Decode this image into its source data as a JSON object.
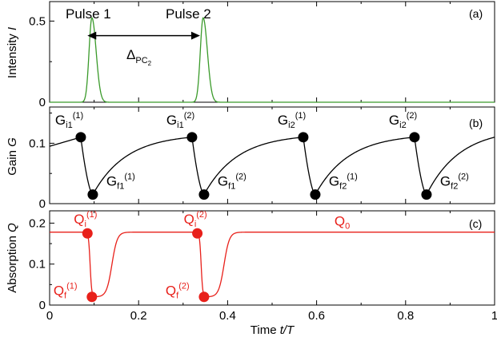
{
  "colors": {
    "intensity": "#3a9a2a",
    "gain": "#000000",
    "absorption": "#e8201a",
    "axes": "#000000"
  },
  "chart_data": [
    {
      "panel": "a",
      "type": "line",
      "tag": "(a)",
      "ylabel": {
        "main": "Intensity ",
        "var": "I"
      },
      "xlim": [
        0,
        1
      ],
      "ylim": [
        0,
        0.62
      ],
      "yticks": [
        0,
        0.5
      ],
      "ytick_labels": [
        "0",
        "0.5"
      ],
      "grid": false,
      "series": [
        {
          "color": "#3a9a2a",
          "pulses": [
            {
              "center": 0.095,
              "width": 0.01,
              "peak": 0.52
            },
            {
              "center": 0.345,
              "width": 0.01,
              "peak": 0.52
            }
          ]
        }
      ],
      "annotations": {
        "pulse1": "Pulse 1",
        "pulse2": "Pulse 2",
        "delta": {
          "symbol": "Δ",
          "sub": "PC",
          "subsub": "2"
        },
        "arrow_from": 0.085,
        "arrow_to": 0.338,
        "arrow_y": 0.41
      }
    },
    {
      "panel": "b",
      "type": "line",
      "tag": "(b)",
      "ylabel": {
        "main": "Gain ",
        "var": "G"
      },
      "xlim": [
        0,
        1
      ],
      "ylim": [
        0,
        0.16
      ],
      "yticks": [
        0,
        0.1
      ],
      "ytick_labels": [
        "0",
        "0.1"
      ],
      "grid": false,
      "points": [
        {
          "x": 0.07,
          "y": 0.11,
          "label": "G",
          "sub": "i1",
          "sup": "(1)"
        },
        {
          "x": 0.097,
          "y": 0.015,
          "label": "G",
          "sub": "f1",
          "sup": "(1)"
        },
        {
          "x": 0.32,
          "y": 0.11,
          "label": "G",
          "sub": "i1",
          "sup": "(2)"
        },
        {
          "x": 0.347,
          "y": 0.015,
          "label": "G",
          "sub": "f1",
          "sup": "(2)"
        },
        {
          "x": 0.57,
          "y": 0.11,
          "label": "G",
          "sub": "i2",
          "sup": "(1)"
        },
        {
          "x": 0.597,
          "y": 0.015,
          "label": "G",
          "sub": "f2",
          "sup": "(1)"
        },
        {
          "x": 0.82,
          "y": 0.11,
          "label": "G",
          "sub": "i2",
          "sup": "(2)"
        },
        {
          "x": 0.847,
          "y": 0.015,
          "label": "G",
          "sub": "f2",
          "sup": "(2)"
        }
      ],
      "start_value": 0.095,
      "recovery_end": 0.11
    },
    {
      "panel": "c",
      "type": "line",
      "tag": "(c)",
      "ylabel": {
        "main": "Absorption ",
        "var": "Q"
      },
      "xlabel": {
        "main": "Time ",
        "var": "t/T"
      },
      "xlim": [
        0,
        1
      ],
      "ylim": [
        0,
        0.23
      ],
      "yticks": [
        0,
        0.1,
        0.2
      ],
      "ytick_labels": [
        "0",
        "0.1",
        "0.2"
      ],
      "xticks": [
        0,
        0.2,
        0.4,
        0.6,
        0.8,
        1
      ],
      "xtick_labels": [
        "0",
        "0.2",
        "0.4",
        "0.6",
        "0.8",
        "1"
      ],
      "grid": false,
      "q0": 0.178,
      "points": [
        {
          "x": 0.085,
          "y": 0.175,
          "label": "Q",
          "sub": "i",
          "sup": "(1)"
        },
        {
          "x": 0.095,
          "y": 0.02,
          "label": "Q",
          "sub": "f",
          "sup": "(1)"
        },
        {
          "x": 0.332,
          "y": 0.175,
          "label": "Q",
          "sub": "i",
          "sup": "(2)"
        },
        {
          "x": 0.347,
          "y": 0.02,
          "label": "Q",
          "sub": "f",
          "sup": "(2)"
        }
      ],
      "q0_label": {
        "label": "Q",
        "sub": "0"
      }
    }
  ]
}
